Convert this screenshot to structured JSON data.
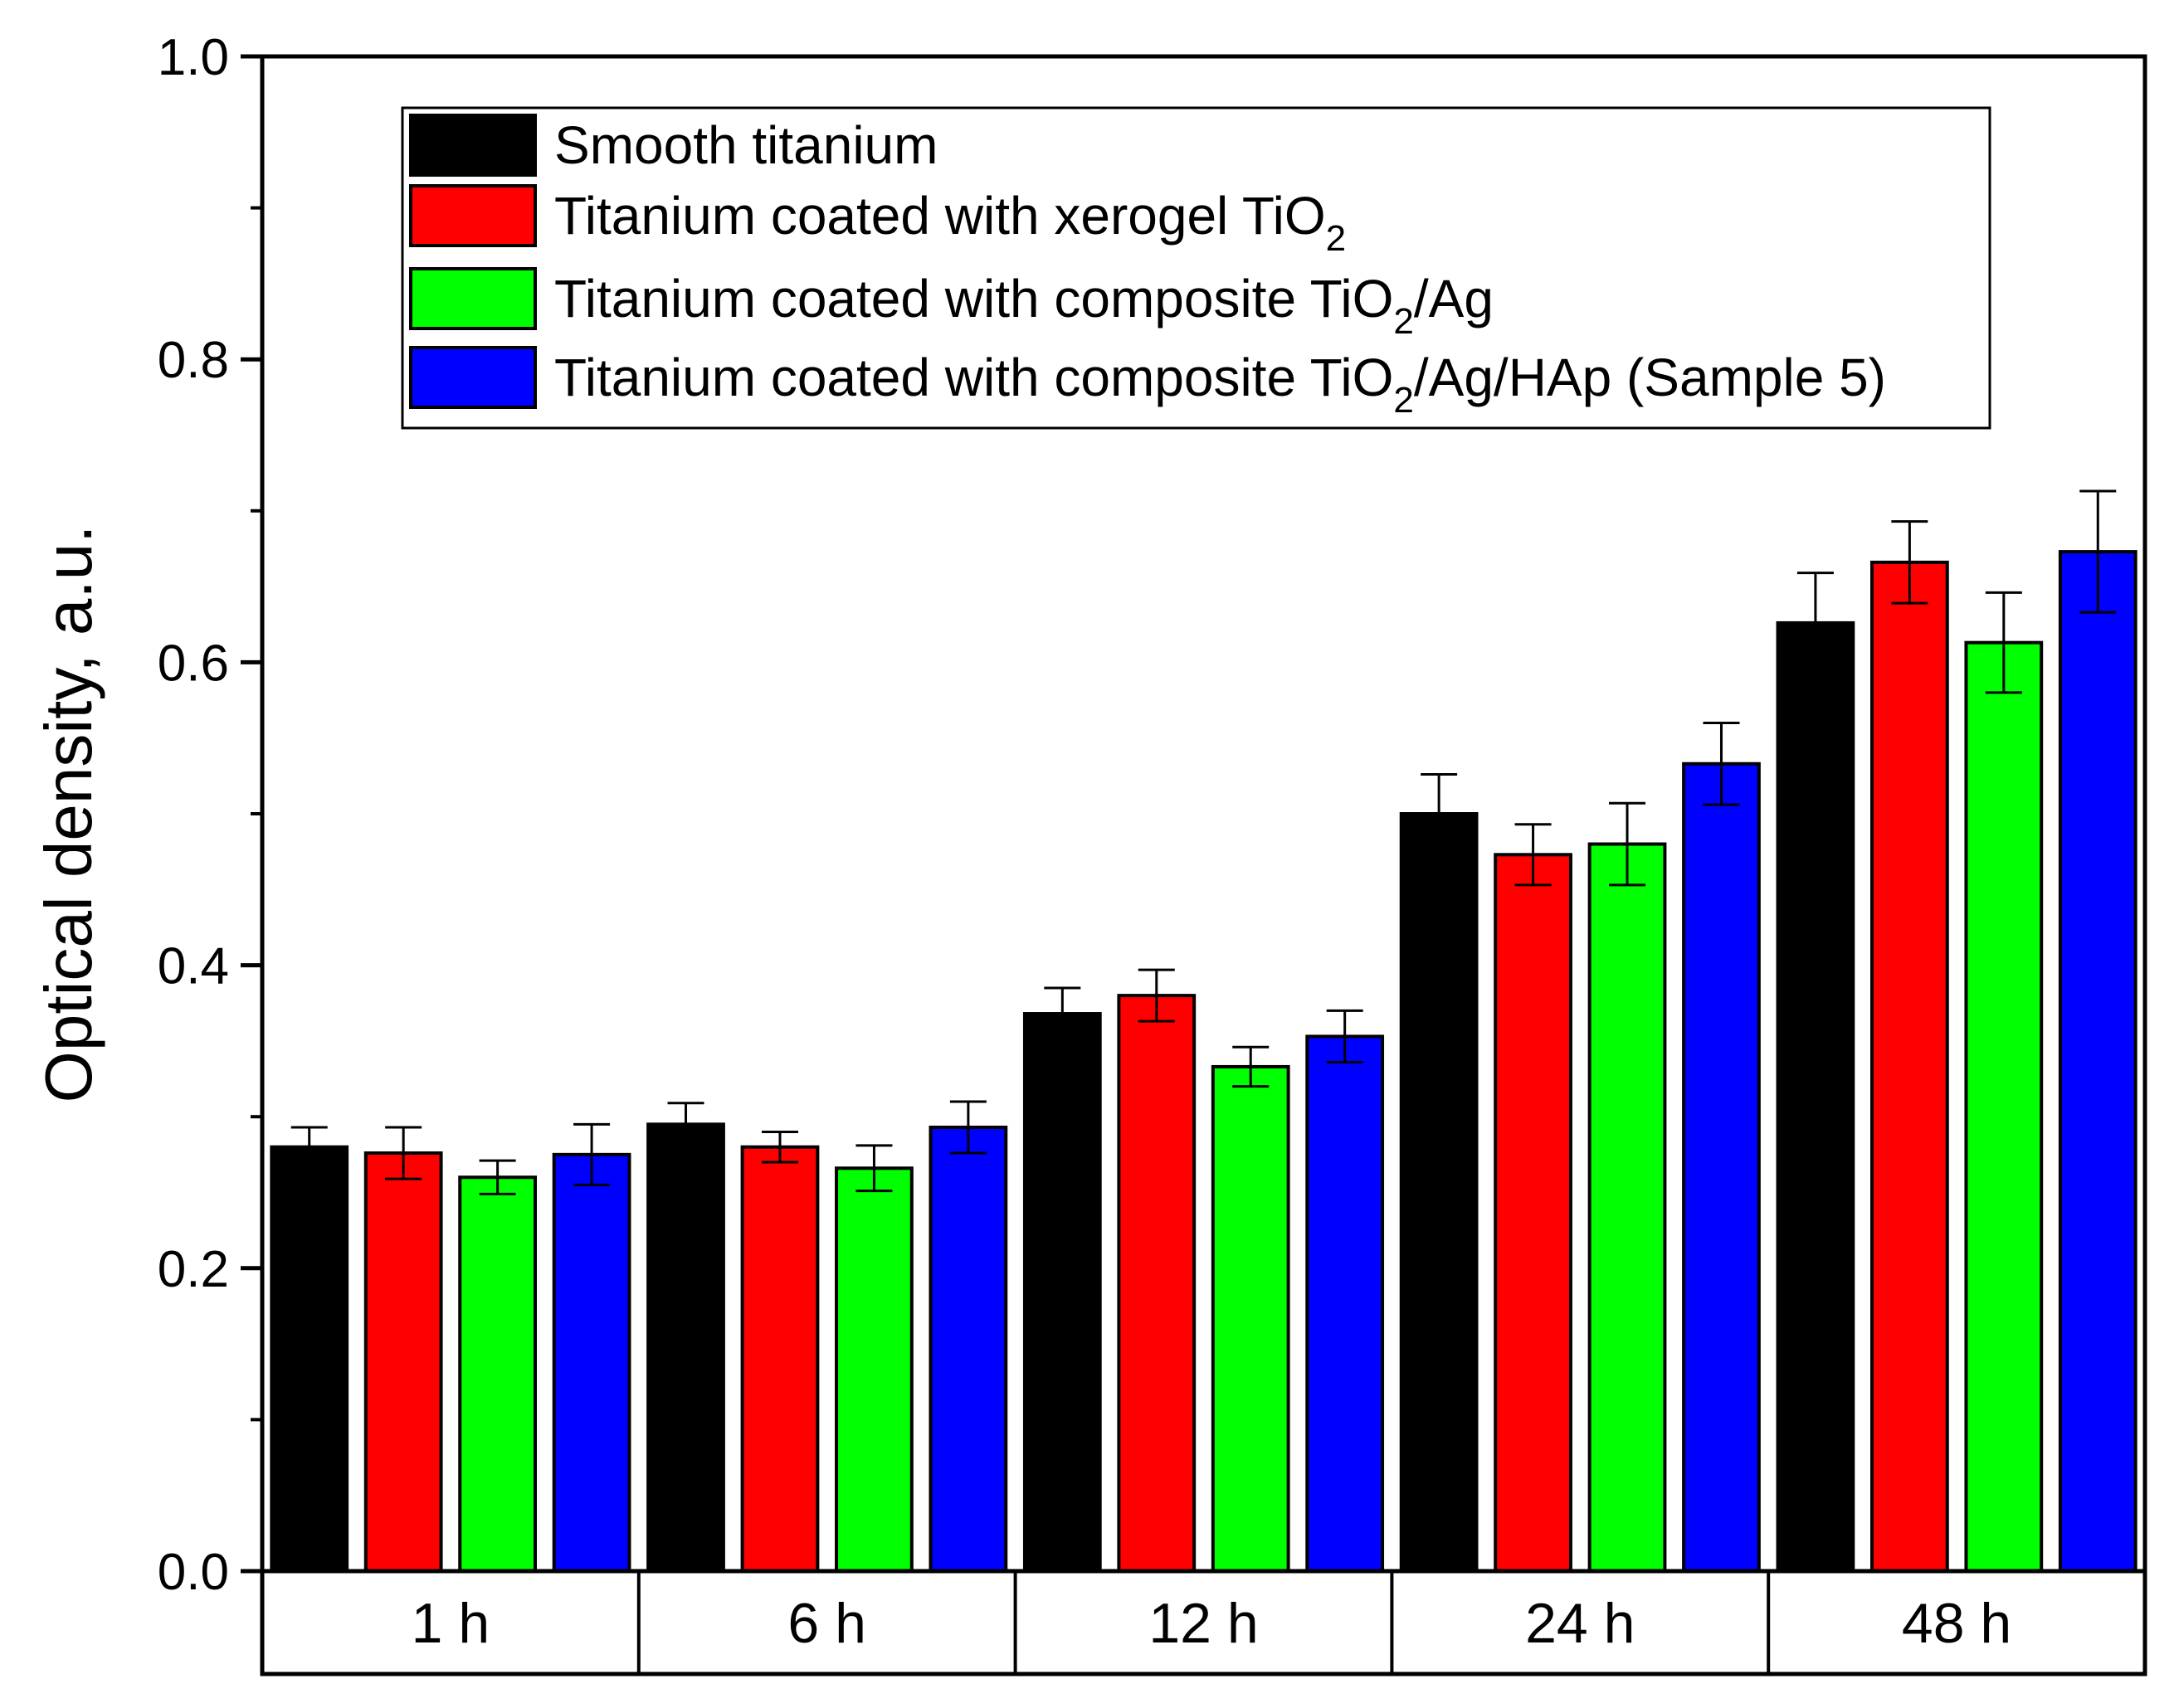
{
  "chart_data": {
    "type": "bar",
    "title": "",
    "xlabel": "",
    "ylabel": "Optical density, a.u.",
    "ylim": [
      0,
      1.0
    ],
    "yticks": [
      "0.0",
      "0.2",
      "0.4",
      "0.6",
      "0.8",
      "1.0"
    ],
    "ytick_values": [
      0,
      0.2,
      0.4,
      0.6,
      0.8,
      1.0
    ],
    "grid": false,
    "legend_position": "top-right",
    "categories": [
      "1 h",
      "6 h",
      "12 h",
      "24 h",
      "48 h"
    ],
    "series": [
      {
        "name": "Smooth titanium",
        "legend": {
          "pre": "Smooth titanium",
          "sub": "",
          "post": ""
        },
        "color": "#000000",
        "values": [
          0.28,
          0.295,
          0.368,
          0.5,
          0.626
        ],
        "errors": [
          0.013,
          0.014,
          0.017,
          0.026,
          0.033
        ]
      },
      {
        "name": "Titanium coated with xerogel TiO2",
        "legend": {
          "pre": "Titanium coated with xerogel TiO",
          "sub": "2",
          "post": ""
        },
        "color": "#ff0000",
        "values": [
          0.276,
          0.28,
          0.38,
          0.473,
          0.666
        ],
        "errors": [
          0.017,
          0.01,
          0.017,
          0.02,
          0.027
        ]
      },
      {
        "name": "Titanium coated with composite TiO2/Ag",
        "legend": {
          "pre": "Titanium coated with composite TiO",
          "sub": "2",
          "post": "/Ag"
        },
        "color": "#00ff00",
        "values": [
          0.26,
          0.266,
          0.333,
          0.48,
          0.613
        ],
        "errors": [
          0.011,
          0.015,
          0.013,
          0.027,
          0.033
        ]
      },
      {
        "name": "Titanium coated with composite TiO2/Ag/HAp (Sample 5)",
        "legend": {
          "pre": "Titanium coated with composite TiO",
          "sub": "2",
          "post": "/Ag/HAp (Sample 5)"
        },
        "color": "#0000ff",
        "values": [
          0.275,
          0.293,
          0.353,
          0.533,
          0.673
        ],
        "errors": [
          0.02,
          0.017,
          0.017,
          0.027,
          0.04
        ]
      }
    ]
  }
}
